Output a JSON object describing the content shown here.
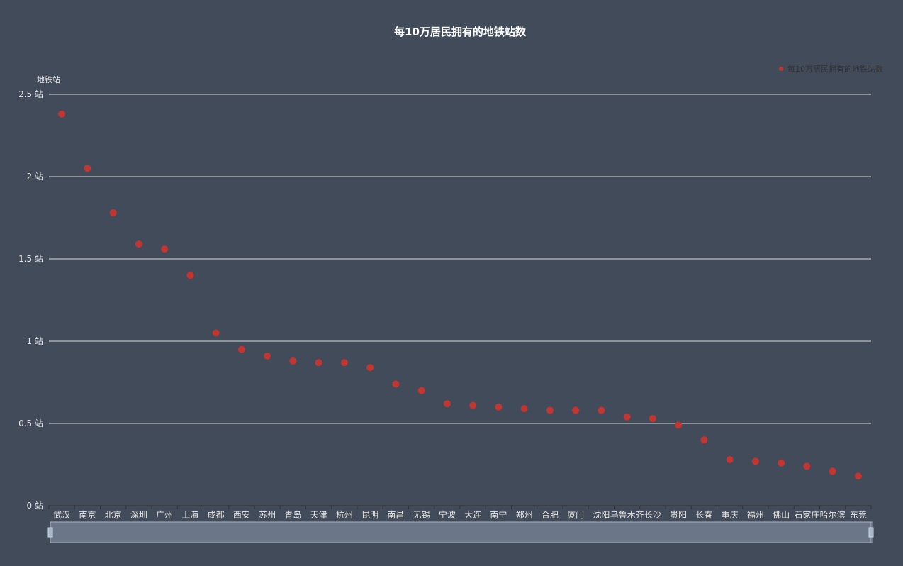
{
  "chart_data": {
    "type": "scatter",
    "title": "每10万居民拥有的地铁站数",
    "ylabel": "地铁站",
    "y_unit": "站",
    "legend": [
      "每10万居民拥有的地铁站数"
    ],
    "legend_placement": "top-right",
    "ylim": [
      0,
      2.5
    ],
    "yticks": [
      "0 站",
      "0.5 站",
      "1 站",
      "1.5 站",
      "2 站",
      "2.5 站"
    ],
    "grid": true,
    "categories": [
      "武汉",
      "南京",
      "北京",
      "深圳",
      "广州",
      "上海",
      "成都",
      "西安",
      "苏州",
      "青岛",
      "天津",
      "杭州",
      "昆明",
      "南昌",
      "无锡",
      "宁波",
      "大连",
      "南宁",
      "郑州",
      "合肥",
      "厦门",
      "沈阳",
      "乌鲁木齐",
      "长沙",
      "贵阳",
      "长春",
      "重庆",
      "福州",
      "佛山",
      "石家庄",
      "哈尔滨",
      "东莞"
    ],
    "series": [
      {
        "name": "每10万居民拥有的地铁站数",
        "values": [
          2.38,
          2.05,
          1.78,
          1.59,
          1.56,
          1.4,
          1.05,
          0.95,
          0.91,
          0.88,
          0.87,
          0.87,
          0.84,
          0.74,
          0.7,
          0.62,
          0.61,
          0.6,
          0.59,
          0.58,
          0.58,
          0.58,
          0.54,
          0.53,
          0.49,
          0.4,
          0.28,
          0.27,
          0.26,
          0.24,
          0.21,
          0.18
        ]
      }
    ],
    "colors": {
      "background": "#424b59",
      "point": "#c23531",
      "grid": "#d9d9d9",
      "datazoom_fill": "#6b7689"
    },
    "datazoom": {
      "start_percent": 0,
      "end_percent": 100
    }
  }
}
